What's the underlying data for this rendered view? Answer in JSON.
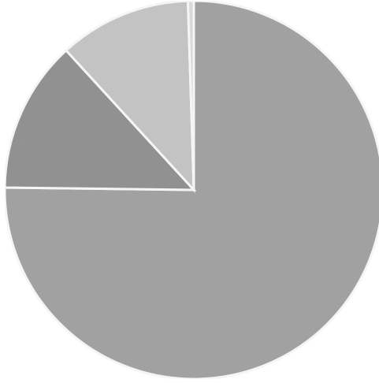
{
  "chart_data": {
    "type": "pie",
    "title": "",
    "start_angle": "12 o'clock",
    "direction": "clockwise",
    "slices": [
      {
        "value": 75.2,
        "color": "#a8a8a8"
      },
      {
        "value": 13.0,
        "color": "#979797"
      },
      {
        "value": 11.3,
        "color": "#cbcbcb"
      },
      {
        "value": 0.5,
        "color": "#e2e2e2"
      }
    ]
  }
}
